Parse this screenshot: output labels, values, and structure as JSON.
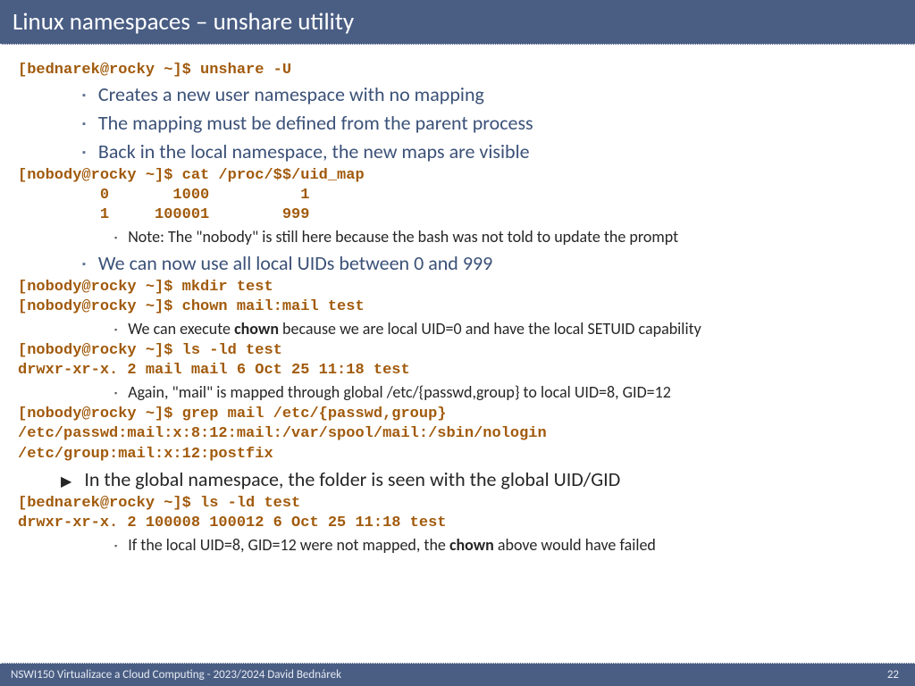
{
  "title": "Linux namespaces – unshare utility",
  "lines": [
    {
      "type": "code",
      "text": "[bednarek@rocky ~]$ unshare -U"
    },
    {
      "type": "b1",
      "text": "Creates a new user namespace with no mapping"
    },
    {
      "type": "b1",
      "text": "The mapping must be defined from the parent process"
    },
    {
      "type": "b1",
      "text": "Back in the local namespace, the new maps are visible"
    },
    {
      "type": "code",
      "text": "[nobody@rocky ~]$ cat /proc/$$/uid_map"
    },
    {
      "type": "code",
      "text": "         0       1000          1"
    },
    {
      "type": "code",
      "text": "         1     100001        999"
    },
    {
      "type": "b2",
      "parts": [
        {
          "t": "Note: The \"nobody\" is still here because the bash was not told to update the prompt",
          "b": false
        }
      ]
    },
    {
      "type": "b1",
      "text": "We can now use all local UIDs between 0 and 999"
    },
    {
      "type": "code",
      "text": "[nobody@rocky ~]$ mkdir test"
    },
    {
      "type": "code",
      "text": "[nobody@rocky ~]$ chown mail:mail test"
    },
    {
      "type": "b2",
      "parts": [
        {
          "t": "We can execute ",
          "b": false
        },
        {
          "t": "chown",
          "b": true
        },
        {
          "t": " because we are local UID=0 and have the local SETUID capability",
          "b": false
        }
      ]
    },
    {
      "type": "code",
      "text": "[nobody@rocky ~]$ ls -ld test"
    },
    {
      "type": "code",
      "text": "drwxr-xr-x. 2 mail mail 6 Oct 25 11:18 test"
    },
    {
      "type": "b2",
      "parts": [
        {
          "t": "Again, \"mail\" is mapped through global /etc/{passwd,group} to local UID=8, GID=12",
          "b": false
        }
      ]
    },
    {
      "type": "code",
      "text": "[nobody@rocky ~]$ grep mail /etc/{passwd,group}"
    },
    {
      "type": "code",
      "text": "/etc/passwd:mail:x:8:12:mail:/var/spool/mail:/sbin/nologin"
    },
    {
      "type": "code",
      "text": "/etc/group:mail:x:12:postfix"
    },
    {
      "type": "arrow",
      "text": "In the global namespace, the folder is seen with the global UID/GID"
    },
    {
      "type": "code",
      "text": "[bednarek@rocky ~]$ ls -ld test"
    },
    {
      "type": "code",
      "text": "drwxr-xr-x. 2 100008 100012 6 Oct 25 11:18 test"
    },
    {
      "type": "b2",
      "parts": [
        {
          "t": "If the local UID=8, GID=12 were not mapped, the ",
          "b": false
        },
        {
          "t": "chown",
          "b": true
        },
        {
          "t": " above would have failed",
          "b": false
        }
      ]
    }
  ],
  "footer": {
    "left": "NSWI150 Virtualizace a Cloud Computing - 2023/2024 David Bednárek",
    "page": "22"
  },
  "colors": {
    "header_bg": "#4a5e84",
    "code": "#a15a0c",
    "bullet1_text": "#3b5178",
    "bullet2_text": "#262626"
  }
}
